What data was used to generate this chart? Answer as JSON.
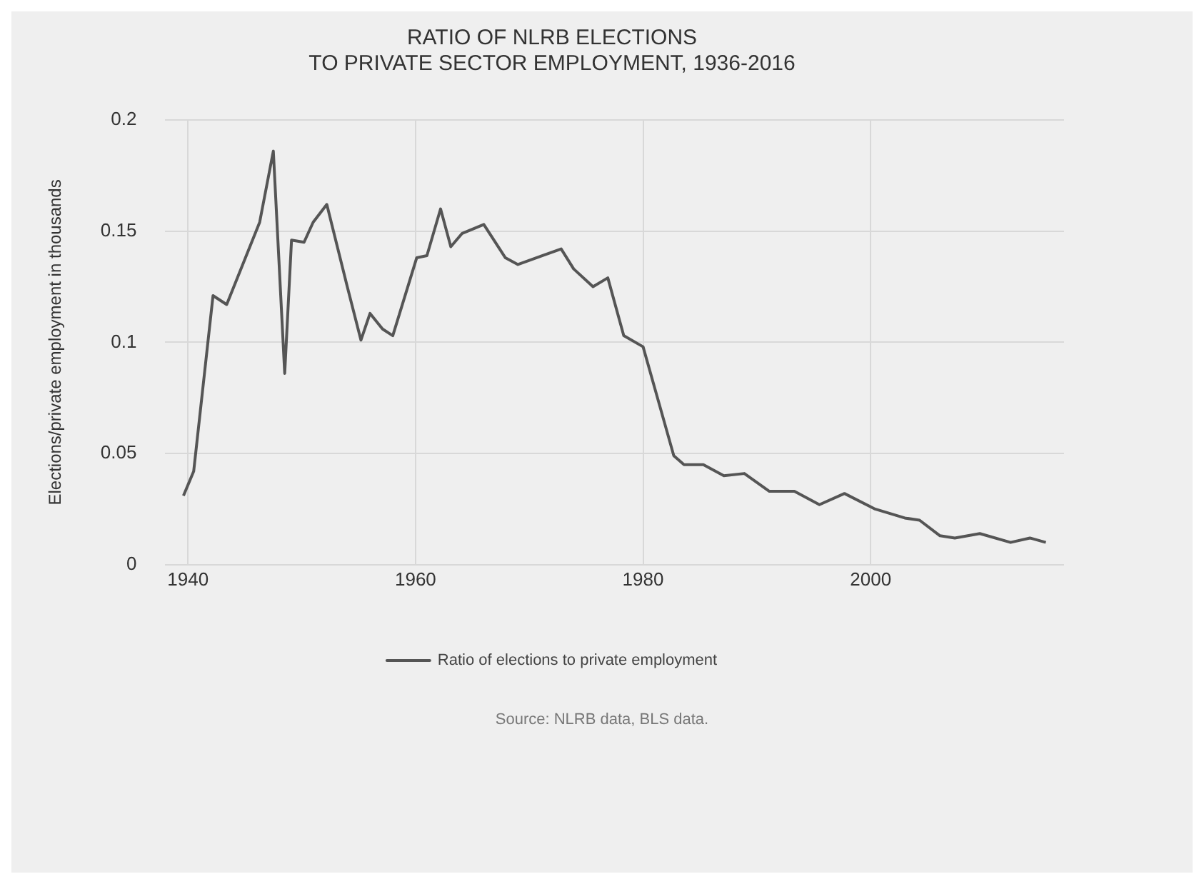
{
  "chart_data": {
    "type": "line",
    "title": "RATIO OF NLRB ELECTIONS\nTO PRIVATE SECTOR EMPLOYMENT, 1936-2016",
    "ylabel": "Elections/private employment in thousands",
    "annotations": [
      "Source: NLRB data, BLS data."
    ],
    "xlim": [
      1938,
      2017
    ],
    "xticks": [
      1940,
      1960,
      1980,
      2000
    ],
    "ylim": [
      0,
      0.2
    ],
    "yticks": [
      0,
      0.05,
      0.1,
      0.15,
      0.2
    ],
    "grid": true,
    "legend": "bottom",
    "marker": "none",
    "line_style": "solid",
    "series": [
      {
        "name": "Ratio of elections to private employment",
        "color": "#555555",
        "x": [
          1939.6,
          1940.5,
          1942.2,
          1943.4,
          1946.3,
          1947.5,
          1948.5,
          1949.1,
          1950.2,
          1951,
          1952.2,
          1954,
          1955.2,
          1956,
          1957.1,
          1958,
          1960.1,
          1961,
          1962.2,
          1963.1,
          1964.1,
          1966,
          1967.9,
          1969,
          1972.8,
          1973.9,
          1975.6,
          1976.9,
          1978.3,
          1980,
          1982.7,
          1983.6,
          1985.3,
          1987.1,
          1988.9,
          1991.1,
          1993.3,
          1995.5,
          1997.7,
          2000.4,
          2003,
          2004.3,
          2006.1,
          2007.4,
          2009.6,
          2012.3,
          2014,
          2015.4
        ],
        "values": [
          0.031,
          0.042,
          0.121,
          0.117,
          0.154,
          0.186,
          0.086,
          0.146,
          0.145,
          0.154,
          0.162,
          0.125,
          0.101,
          0.113,
          0.106,
          0.103,
          0.138,
          0.139,
          0.16,
          0.143,
          0.149,
          0.153,
          0.138,
          0.135,
          0.142,
          0.133,
          0.125,
          0.129,
          0.103,
          0.098,
          0.049,
          0.045,
          0.045,
          0.04,
          0.041,
          0.033,
          0.033,
          0.027,
          0.032,
          0.025,
          0.021,
          0.02,
          0.013,
          0.012,
          0.014,
          0.01,
          0.012,
          0.01
        ]
      }
    ]
  }
}
